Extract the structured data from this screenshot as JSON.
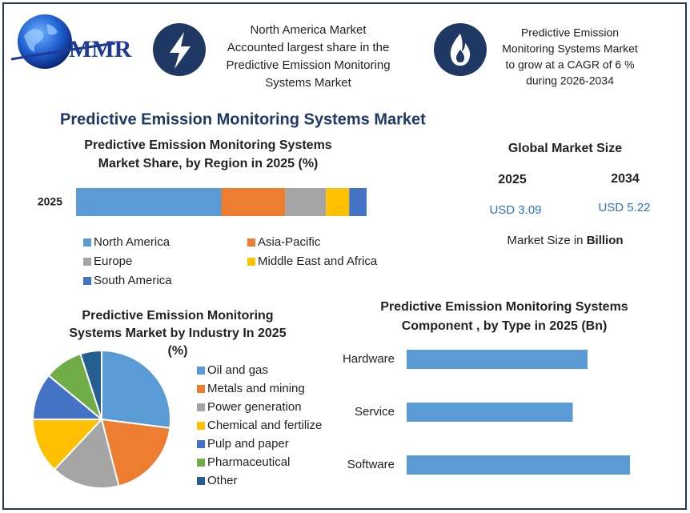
{
  "header": {
    "logo": "MMR",
    "note_1": [
      "North America Market",
      "Accounted largest share in the",
      "Predictive Emission Monitoring",
      "Systems Market"
    ],
    "note_2": [
      "Predictive Emission",
      "Monitoring Systems Market",
      "to grow at a CAGR of 6 %",
      "during 2026-2034"
    ],
    "title": "Predictive Emission Monitoring Systems Market"
  },
  "market_size": {
    "title": "Global Market Size",
    "years": [
      "2025",
      "2034"
    ],
    "values": [
      "USD 3.09",
      "USD 5.22"
    ],
    "note": "Market Size in ",
    "note_bold": "Billion"
  },
  "chart_data": [
    {
      "type": "stacked_bar",
      "title": [
        "Predictive Emission Monitoring Systems",
        "Market Share, by Region in 2025 (%)"
      ],
      "categories": [
        "2025"
      ],
      "series": [
        {
          "name": "North America",
          "color": "#5b9bd5",
          "values": [
            50
          ]
        },
        {
          "name": "Asia-Pacific",
          "color": "#ed7d31",
          "values": [
            22
          ]
        },
        {
          "name": "Europe",
          "color": "#a5a5a5",
          "values": [
            14
          ]
        },
        {
          "name": "Middle East and Africa",
          "color": "#ffc000",
          "values": [
            8
          ]
        },
        {
          "name": "South America",
          "color": "#4472c4",
          "values": [
            6
          ]
        }
      ]
    },
    {
      "type": "pie",
      "title": [
        "Predictive Emission Monitoring",
        "Systems Market by Industry In 2025",
        "(%)"
      ],
      "categories": [
        "Oil and gas",
        "Metals and mining",
        "Power generation",
        "Chemical and fertilize",
        "Pulp and paper",
        "Pharmaceutical",
        "Other"
      ],
      "values": [
        27,
        19,
        16,
        13,
        11,
        9,
        5
      ],
      "colors": [
        "#5b9bd5",
        "#ed7d31",
        "#a5a5a5",
        "#ffc000",
        "#4472c4",
        "#70ad47",
        "#255e91"
      ]
    },
    {
      "type": "hbar",
      "title": [
        "Predictive Emission Monitoring Systems",
        "Component , by Type in 2025 (Bn)"
      ],
      "categories": [
        "Hardware",
        "Service",
        "Software"
      ],
      "values": [
        0.98,
        0.9,
        1.21
      ],
      "color": "#5b9bd5"
    }
  ]
}
